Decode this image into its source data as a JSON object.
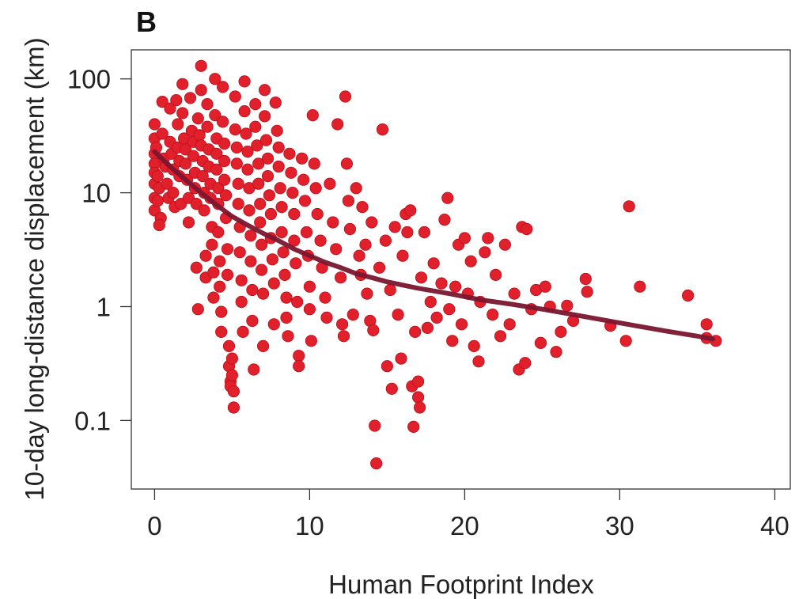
{
  "chart_data": {
    "type": "scatter",
    "panel_label": "B",
    "xlabel": "Human Footprint Index",
    "ylabel": "10-day long-distance displacement (km)",
    "xlim": [
      -1.5,
      41
    ],
    "ylim": [
      0.025,
      180
    ],
    "yscale": "log",
    "xticks": [
      0,
      10,
      20,
      30,
      40
    ],
    "xtick_labels": [
      "0",
      "10",
      "20",
      "30",
      "40"
    ],
    "yticks": [
      0.1,
      1,
      10,
      100
    ],
    "ytick_labels": [
      "0.1",
      "1",
      "10",
      "100"
    ],
    "grid": false,
    "point_color": "#e2202c",
    "point_edge_color": "#b5121c",
    "line_color": "#7a1630",
    "series": [
      {
        "type": "scatter",
        "points": [
          [
            0.0,
            22
          ],
          [
            0.0,
            18
          ],
          [
            0.0,
            15
          ],
          [
            0.0,
            12
          ],
          [
            0.0,
            9
          ],
          [
            0.0,
            7
          ],
          [
            0.0,
            30
          ],
          [
            0.0,
            40
          ],
          [
            0.1,
            25
          ],
          [
            0.2,
            14
          ],
          [
            0.3,
            11
          ],
          [
            0.2,
            8.5
          ],
          [
            0.4,
            6
          ],
          [
            0.3,
            5.2
          ],
          [
            0.5,
            63
          ],
          [
            0.5,
            33
          ],
          [
            0.6,
            20
          ],
          [
            0.7,
            17
          ],
          [
            0.8,
            12
          ],
          [
            0.9,
            9
          ],
          [
            1.0,
            55
          ],
          [
            1.0,
            28
          ],
          [
            1.1,
            22
          ],
          [
            1.2,
            16
          ],
          [
            1.2,
            10
          ],
          [
            1.3,
            7.5
          ],
          [
            1.4,
            65
          ],
          [
            1.5,
            40
          ],
          [
            1.5,
            25
          ],
          [
            1.6,
            19
          ],
          [
            1.6,
            14
          ],
          [
            1.7,
            8
          ],
          [
            1.8,
            90
          ],
          [
            1.8,
            50
          ],
          [
            1.9,
            30
          ],
          [
            2.0,
            24
          ],
          [
            2.0,
            18
          ],
          [
            2.1,
            13
          ],
          [
            2.2,
            9
          ],
          [
            2.2,
            5.5
          ],
          [
            2.3,
            68
          ],
          [
            2.4,
            35
          ],
          [
            2.5,
            28
          ],
          [
            2.5,
            21
          ],
          [
            2.6,
            15
          ],
          [
            2.6,
            11
          ],
          [
            2.7,
            8
          ],
          [
            2.7,
            2.2
          ],
          [
            2.8,
            0.95
          ],
          [
            2.8,
            45
          ],
          [
            2.9,
            32
          ],
          [
            3.0,
            130
          ],
          [
            3.0,
            80
          ],
          [
            3.0,
            26
          ],
          [
            3.1,
            19
          ],
          [
            3.1,
            14
          ],
          [
            3.2,
            10
          ],
          [
            3.2,
            7
          ],
          [
            3.3,
            2.8
          ],
          [
            3.3,
            1.8
          ],
          [
            3.4,
            60
          ],
          [
            3.4,
            38
          ],
          [
            3.5,
            24
          ],
          [
            3.5,
            17
          ],
          [
            3.6,
            12
          ],
          [
            3.6,
            9
          ],
          [
            3.7,
            5
          ],
          [
            3.7,
            3.5
          ],
          [
            3.8,
            2
          ],
          [
            3.8,
            1.2
          ],
          [
            3.9,
            100
          ],
          [
            3.9,
            48
          ],
          [
            4.0,
            30
          ],
          [
            4.0,
            22
          ],
          [
            4.0,
            16
          ],
          [
            4.1,
            11
          ],
          [
            4.1,
            8
          ],
          [
            4.1,
            4.5
          ],
          [
            4.2,
            2.5
          ],
          [
            4.2,
            1.5
          ],
          [
            4.3,
            0.9
          ],
          [
            4.3,
            0.6
          ],
          [
            4.4,
            85
          ],
          [
            4.4,
            42
          ],
          [
            4.5,
            27
          ],
          [
            4.5,
            19
          ],
          [
            4.5,
            13
          ],
          [
            4.6,
            9.5
          ],
          [
            4.6,
            6
          ],
          [
            4.7,
            3.2
          ],
          [
            4.7,
            1.9
          ],
          [
            4.8,
            0.45
          ],
          [
            4.8,
            0.3
          ],
          [
            4.9,
            0.22
          ],
          [
            4.9,
            0.2
          ],
          [
            5.0,
            0.25
          ],
          [
            5.0,
            0.35
          ],
          [
            5.1,
            0.13
          ],
          [
            5.1,
            0.18
          ],
          [
            5.2,
            70
          ],
          [
            5.2,
            36
          ],
          [
            5.3,
            25
          ],
          [
            5.3,
            18
          ],
          [
            5.4,
            12
          ],
          [
            5.4,
            8
          ],
          [
            5.5,
            5
          ],
          [
            5.5,
            3
          ],
          [
            5.6,
            1.7
          ],
          [
            5.6,
            1.1
          ],
          [
            5.7,
            0.6
          ],
          [
            5.8,
            95
          ],
          [
            5.8,
            52
          ],
          [
            5.9,
            33
          ],
          [
            6.0,
            23
          ],
          [
            6.0,
            16
          ],
          [
            6.1,
            11
          ],
          [
            6.1,
            7
          ],
          [
            6.2,
            4.2
          ],
          [
            6.2,
            2.5
          ],
          [
            6.3,
            1.4
          ],
          [
            6.3,
            0.75
          ],
          [
            6.4,
            0.28
          ],
          [
            6.5,
            60
          ],
          [
            6.5,
            38
          ],
          [
            6.6,
            26
          ],
          [
            6.7,
            18
          ],
          [
            6.7,
            12
          ],
          [
            6.8,
            8
          ],
          [
            6.8,
            5.5
          ],
          [
            6.9,
            3.5
          ],
          [
            6.9,
            2.1
          ],
          [
            7.0,
            1.3
          ],
          [
            7.0,
            0.45
          ],
          [
            7.1,
            80
          ],
          [
            7.1,
            47
          ],
          [
            7.2,
            29
          ],
          [
            7.3,
            20
          ],
          [
            7.3,
            14
          ],
          [
            7.4,
            9.5
          ],
          [
            7.5,
            6.5
          ],
          [
            7.5,
            4
          ],
          [
            7.6,
            2.6
          ],
          [
            7.7,
            1.6
          ],
          [
            7.7,
            0.7
          ],
          [
            7.8,
            62
          ],
          [
            7.9,
            35
          ],
          [
            8.0,
            25
          ],
          [
            8.0,
            17
          ],
          [
            8.1,
            11
          ],
          [
            8.2,
            7.5
          ],
          [
            8.2,
            4.5
          ],
          [
            8.3,
            3
          ],
          [
            8.4,
            1.9
          ],
          [
            8.5,
            1.2
          ],
          [
            8.5,
            0.8
          ],
          [
            8.6,
            0.55
          ],
          [
            8.7,
            22
          ],
          [
            8.8,
            15
          ],
          [
            8.9,
            10
          ],
          [
            9.0,
            6.5
          ],
          [
            9.0,
            3.8
          ],
          [
            9.1,
            2.4
          ],
          [
            9.2,
            1.1
          ],
          [
            9.3,
            0.37
          ],
          [
            9.3,
            0.3
          ],
          [
            9.5,
            20
          ],
          [
            9.6,
            13
          ],
          [
            9.7,
            8.5
          ],
          [
            9.8,
            4.5
          ],
          [
            9.9,
            2.8
          ],
          [
            10.0,
            1.5
          ],
          [
            10.0,
            0.95
          ],
          [
            10.1,
            0.5
          ],
          [
            10.2,
            48
          ],
          [
            10.3,
            18
          ],
          [
            10.4,
            11
          ],
          [
            10.5,
            6.5
          ],
          [
            10.7,
            3.8
          ],
          [
            10.8,
            2.2
          ],
          [
            11.0,
            1.2
          ],
          [
            11.1,
            0.8
          ],
          [
            11.3,
            12
          ],
          [
            11.5,
            5.5
          ],
          [
            11.7,
            3.2
          ],
          [
            11.8,
            40
          ],
          [
            12.0,
            1.8
          ],
          [
            12.1,
            0.7
          ],
          [
            12.2,
            0.55
          ],
          [
            12.3,
            70
          ],
          [
            12.4,
            18
          ],
          [
            12.5,
            8.5
          ],
          [
            12.6,
            4.8
          ],
          [
            12.8,
            0.85
          ],
          [
            13.0,
            11
          ],
          [
            13.2,
            2.8
          ],
          [
            13.3,
            1.9
          ],
          [
            13.4,
            7.5
          ],
          [
            13.6,
            3.5
          ],
          [
            13.7,
            1.3
          ],
          [
            13.9,
            0.75
          ],
          [
            14.0,
            5.5
          ],
          [
            14.1,
            0.62
          ],
          [
            14.2,
            0.09
          ],
          [
            14.3,
            0.042
          ],
          [
            14.5,
            2.2
          ],
          [
            14.7,
            36
          ],
          [
            14.9,
            3.8
          ],
          [
            15.0,
            0.3
          ],
          [
            15.2,
            1.4
          ],
          [
            15.3,
            0.19
          ],
          [
            15.5,
            5
          ],
          [
            15.7,
            0.85
          ],
          [
            15.9,
            0.35
          ],
          [
            16.0,
            2.8
          ],
          [
            16.2,
            6.5
          ],
          [
            16.3,
            4.5
          ],
          [
            16.5,
            7
          ],
          [
            16.6,
            0.2
          ],
          [
            16.7,
            0.088
          ],
          [
            16.8,
            0.6
          ],
          [
            17.0,
            0.22
          ],
          [
            17.0,
            0.16
          ],
          [
            17.1,
            0.13
          ],
          [
            17.2,
            1.8
          ],
          [
            17.4,
            4.5
          ],
          [
            17.6,
            0.65
          ],
          [
            17.8,
            1.1
          ],
          [
            18.0,
            2.4
          ],
          [
            18.2,
            0.8
          ],
          [
            18.5,
            1.6
          ],
          [
            18.7,
            5.8
          ],
          [
            18.9,
            9
          ],
          [
            19.0,
            0.95
          ],
          [
            19.2,
            0.5
          ],
          [
            19.4,
            1.5
          ],
          [
            19.6,
            3.5
          ],
          [
            19.8,
            0.7
          ],
          [
            20.0,
            4
          ],
          [
            20.2,
            1.3
          ],
          [
            20.4,
            2.5
          ],
          [
            20.6,
            0.45
          ],
          [
            20.9,
            0.33
          ],
          [
            21.0,
            1.1
          ],
          [
            21.3,
            3
          ],
          [
            21.5,
            4
          ],
          [
            21.8,
            0.85
          ],
          [
            22.0,
            1.9
          ],
          [
            22.3,
            0.55
          ],
          [
            22.6,
            3.5
          ],
          [
            22.9,
            0.7
          ],
          [
            23.2,
            1.3
          ],
          [
            23.5,
            0.28
          ],
          [
            23.7,
            5
          ],
          [
            23.9,
            0.32
          ],
          [
            24.0,
            4.8
          ],
          [
            24.3,
            0.95
          ],
          [
            24.6,
            1.4
          ],
          [
            24.9,
            0.48
          ],
          [
            25.2,
            1.5
          ],
          [
            25.5,
            1
          ],
          [
            25.9,
            0.4
          ],
          [
            26.2,
            0.6
          ],
          [
            26.6,
            1.02
          ],
          [
            27.0,
            0.75
          ],
          [
            27.8,
            1.75
          ],
          [
            27.9,
            1.35
          ],
          [
            29.4,
            0.68
          ],
          [
            30.4,
            0.5
          ],
          [
            30.6,
            7.6
          ],
          [
            31.3,
            1.5
          ],
          [
            34.4,
            1.25
          ],
          [
            35.6,
            0.7
          ],
          [
            35.6,
            0.53
          ],
          [
            36.2,
            0.5
          ]
        ]
      },
      {
        "type": "line",
        "points": [
          [
            0,
            23
          ],
          [
            1,
            17
          ],
          [
            2,
            13
          ],
          [
            3,
            10
          ],
          [
            4,
            7.8
          ],
          [
            5,
            6.2
          ],
          [
            6,
            5.2
          ],
          [
            7,
            4.4
          ],
          [
            8,
            3.8
          ],
          [
            9,
            3.2
          ],
          [
            10,
            2.8
          ],
          [
            11,
            2.45
          ],
          [
            12,
            2.2
          ],
          [
            13,
            1.95
          ],
          [
            14,
            1.8
          ],
          [
            15,
            1.65
          ],
          [
            17,
            1.45
          ],
          [
            19,
            1.3
          ],
          [
            21,
            1.15
          ],
          [
            23,
            1.05
          ],
          [
            25,
            0.95
          ],
          [
            27,
            0.85
          ],
          [
            29,
            0.76
          ],
          [
            31,
            0.68
          ],
          [
            33,
            0.61
          ],
          [
            35,
            0.55
          ],
          [
            36,
            0.52
          ]
        ]
      }
    ]
  }
}
